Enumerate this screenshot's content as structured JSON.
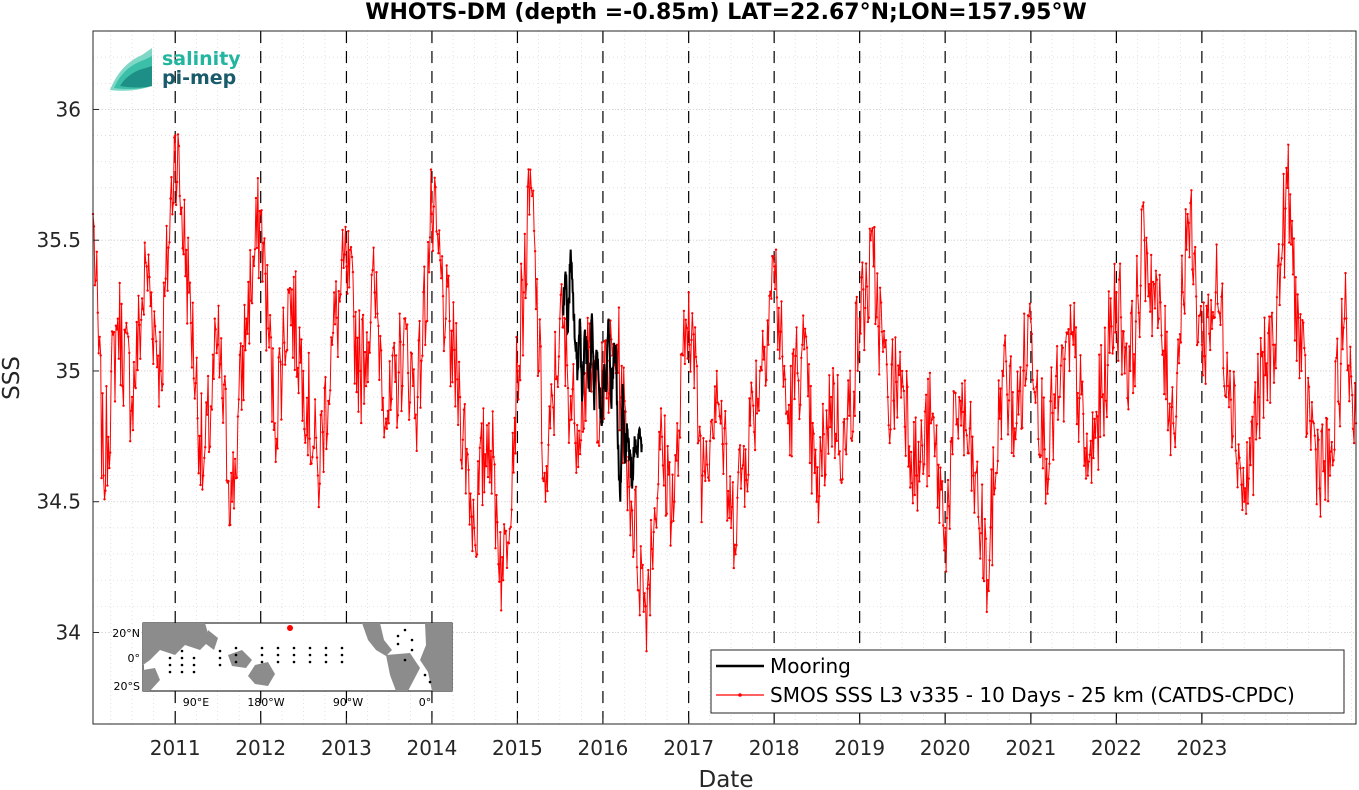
{
  "chart_data": {
    "type": "line",
    "title": "WHOTS-DM (depth =-0.85m) LAT=22.67°N;LON=157.95°W",
    "xlabel": "Date",
    "ylabel": "SSS",
    "xlim": [
      "2010-01-15",
      "2024-10-20"
    ],
    "ylim": [
      33.65,
      36.3
    ],
    "yticks": [
      34,
      34.5,
      35,
      35.5,
      36
    ],
    "xticks": [
      "2011",
      "2012",
      "2013",
      "2014",
      "2015",
      "2016",
      "2017",
      "2018",
      "2019",
      "2020",
      "2021",
      "2022",
      "2023"
    ],
    "grid": true,
    "legend_position": "bottom-right",
    "series": [
      {
        "name": "Mooring",
        "color": "#000000",
        "x": [
          "2015-07-15",
          "2015-07-25",
          "2015-08-05",
          "2015-08-15",
          "2015-08-25",
          "2015-09-05",
          "2015-09-15",
          "2015-09-25",
          "2015-10-05",
          "2015-10-15",
          "2015-10-25",
          "2015-11-05",
          "2015-11-15",
          "2015-11-25",
          "2015-12-05",
          "2015-12-15",
          "2015-12-25",
          "2016-01-05",
          "2016-01-15",
          "2016-01-25",
          "2016-02-05",
          "2016-02-15",
          "2016-02-25",
          "2016-03-05",
          "2016-03-15",
          "2016-03-25",
          "2016-04-05",
          "2016-04-15",
          "2016-04-25",
          "2016-05-05",
          "2016-05-15",
          "2016-05-25",
          "2016-06-05",
          "2016-06-15"
        ],
        "values": [
          35.25,
          35.38,
          35.15,
          35.44,
          35.3,
          35.1,
          35.0,
          35.2,
          34.9,
          35.15,
          35.05,
          34.92,
          35.22,
          34.85,
          35.08,
          34.95,
          34.8,
          35.0,
          34.92,
          35.2,
          34.88,
          35.05,
          35.1,
          34.7,
          34.5,
          34.95,
          34.65,
          34.78,
          34.7,
          34.55,
          34.75,
          34.68,
          34.78,
          34.72
        ]
      },
      {
        "name": "SMOS SSS L3 v335 - 10 Days - 25 km (CATDS-CPDC)",
        "color": "#ff0000",
        "x": [
          "2010-01-15",
          "2010-03-01",
          "2010-05-01",
          "2010-07-01",
          "2010-09-01",
          "2010-11-01",
          "2011-01-01",
          "2011-03-01",
          "2011-05-01",
          "2011-07-01",
          "2011-09-01",
          "2011-11-01",
          "2012-01-01",
          "2012-03-01",
          "2012-05-01",
          "2012-07-01",
          "2012-09-01",
          "2012-11-01",
          "2013-01-01",
          "2013-03-01",
          "2013-05-01",
          "2013-07-01",
          "2013-09-01",
          "2013-11-01",
          "2014-01-01",
          "2014-03-01",
          "2014-05-01",
          "2014-07-01",
          "2014-09-01",
          "2014-11-01",
          "2015-01-01",
          "2015-03-01",
          "2015-05-01",
          "2015-07-01",
          "2015-09-01",
          "2015-11-01",
          "2016-01-01",
          "2016-03-01",
          "2016-05-01",
          "2016-07-01",
          "2016-09-01",
          "2016-11-01",
          "2017-01-01",
          "2017-03-01",
          "2017-05-01",
          "2017-07-01",
          "2017-09-01",
          "2017-11-01",
          "2018-01-01",
          "2018-03-01",
          "2018-05-01",
          "2018-07-01",
          "2018-09-01",
          "2018-11-01",
          "2019-01-01",
          "2019-03-01",
          "2019-05-01",
          "2019-07-01",
          "2019-09-01",
          "2019-11-01",
          "2020-01-01",
          "2020-03-01",
          "2020-05-01",
          "2020-07-01",
          "2020-09-01",
          "2020-11-01",
          "2021-01-01",
          "2021-03-01",
          "2021-05-01",
          "2021-07-01",
          "2021-09-01",
          "2021-11-01",
          "2022-01-01",
          "2022-03-01",
          "2022-05-01",
          "2022-07-01",
          "2022-09-01",
          "2022-11-01",
          "2023-01-01",
          "2023-03-01",
          "2023-05-01",
          "2023-07-01",
          "2023-09-01",
          "2023-11-01",
          "2024-01-01",
          "2024-03-01",
          "2024-05-01",
          "2024-07-01",
          "2024-09-01",
          "2024-10-20"
        ],
        "values": [
          35.6,
          34.6,
          35.2,
          34.9,
          35.4,
          35.0,
          35.9,
          35.3,
          34.6,
          35.1,
          34.5,
          35.2,
          35.6,
          34.8,
          35.3,
          35.0,
          34.6,
          35.1,
          35.4,
          35.0,
          35.3,
          34.8,
          35.1,
          34.9,
          35.6,
          35.2,
          34.9,
          34.4,
          34.8,
          34.2,
          35.0,
          35.7,
          34.5,
          35.2,
          34.8,
          35.0,
          34.9,
          35.1,
          34.5,
          34.1,
          34.7,
          34.5,
          35.3,
          34.6,
          35.0,
          34.4,
          34.7,
          35.0,
          35.4,
          34.8,
          35.1,
          34.5,
          34.9,
          34.7,
          35.2,
          35.4,
          34.9,
          35.0,
          34.6,
          34.8,
          34.4,
          34.9,
          34.6,
          34.2,
          35.0,
          34.8,
          35.2,
          34.7,
          34.9,
          35.1,
          34.6,
          34.9,
          35.3,
          35.0,
          35.5,
          35.2,
          34.8,
          35.6,
          35.1,
          35.3,
          35.0,
          34.5,
          34.9,
          35.1,
          35.7,
          35.0,
          34.7,
          34.6,
          35.2,
          34.8
        ]
      }
    ]
  },
  "logo": {
    "line1": "salinity",
    "line2": "pi-mep",
    "color1": "#22b6a0",
    "color2": "#1a5b6b"
  },
  "inset": {
    "ylabels": [
      "20°N",
      "0°",
      "20°S"
    ],
    "xlabels": [
      "90°E",
      "180°W",
      "90°W",
      "0°"
    ],
    "land_color": "#8c8c8c",
    "marker_color": "#ff0000"
  }
}
